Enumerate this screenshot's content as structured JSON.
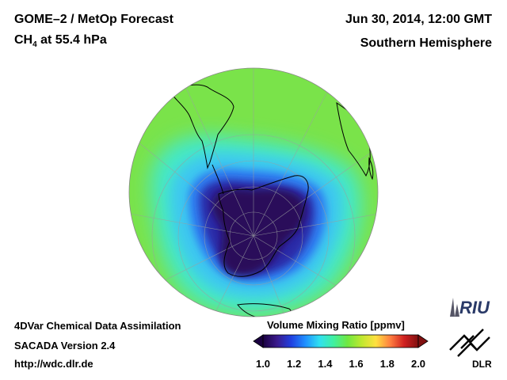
{
  "header": {
    "title_line1": "GOME–2 / MetOp Forecast",
    "species": "CH",
    "species_sub": "4",
    "level": " at 55.4 hPa",
    "datetime": "Jun 30, 2014, 12:00 GMT",
    "region": "Southern Hemisphere"
  },
  "credits": {
    "line1": "4DVar Chemical Data Assimilation",
    "line2": "SACADA Version 2.4",
    "line3": "http://wdc.dlr.de"
  },
  "colorbar": {
    "title": "Volume Mixing Ratio [ppmv]",
    "ticks": [
      "1.0",
      "1.2",
      "1.4",
      "1.6",
      "1.8",
      "2.0"
    ],
    "min": 1.0,
    "max": 2.0,
    "colors": [
      "#1a0040",
      "#3a1a8c",
      "#2040e0",
      "#2090ff",
      "#30e0f0",
      "#40f0a0",
      "#70e840",
      "#c0e830",
      "#ffe040",
      "#ff8040",
      "#d02020",
      "#801010"
    ]
  },
  "logos": {
    "riu": "RIU",
    "dlr": "DLR"
  },
  "map": {
    "projection": "orthographic-south-polar",
    "field_colors": {
      "background": "#7ae34a",
      "outer": "#82e24a",
      "cyan": "#45e8c8",
      "light_blue": "#3ec7f0",
      "blue": "#2e7cf0",
      "dark_blue": "#2a2aa8",
      "vortex_core": "#2b0c5a",
      "coast": "#000000",
      "grid": "#9aa0a0"
    }
  }
}
